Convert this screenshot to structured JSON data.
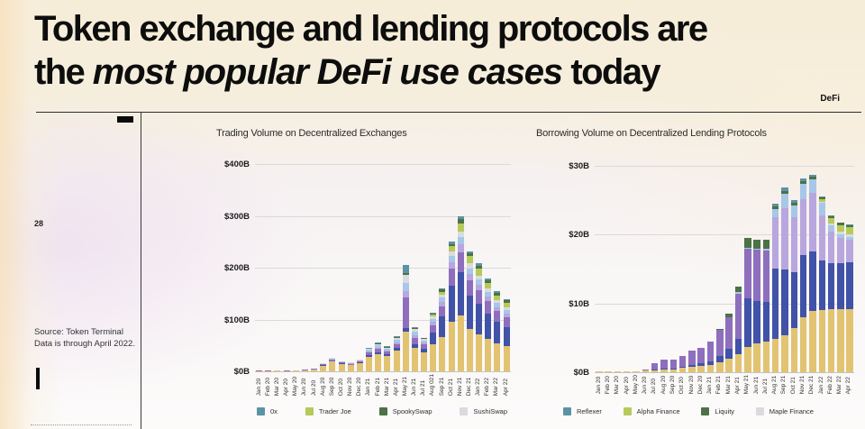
{
  "page": {
    "title_line1": "Token exchange and lending protocols are",
    "title_line2_prefix": "the ",
    "title_line2_italic": "most popular DeFi use cases",
    "title_line2_suffix": " today",
    "corner_label": "DeFi",
    "page_number": "28",
    "source_line1": "Source: Token Terminal",
    "source_line2": "Data is through April 2022."
  },
  "colors": {
    "accent_black": "#0d0d0d",
    "gridline": "#dadada",
    "series_gold": "#E2C371",
    "series_indigo": "#4053A8",
    "series_purple": "#8E6FBE",
    "series_lavender": "#B7A7DE",
    "series_sky": "#A7C7E8",
    "series_gray": "#D9DBDE",
    "series_yellowgreen": "#B5CA5B",
    "series_darkgreen": "#4C7245",
    "series_teal": "#5C93A4"
  },
  "chart_data": [
    {
      "type": "bar",
      "stacked": true,
      "title": "Trading Volume on Decentralized Exchanges",
      "ylim": [
        0,
        400
      ],
      "ylabel_ticks": [
        "$400B",
        "$300B",
        "$200B",
        "$100B",
        "$0B"
      ],
      "grid": true,
      "legend_position": "bottom",
      "categories": [
        "Jan 20",
        "Feb 20",
        "Mar 20",
        "Apr 20",
        "May 20",
        "Jun 20",
        "Jul 20",
        "Aug 20",
        "Sep 20",
        "Oct 20",
        "Nov 20",
        "Dec 20",
        "Jan 21",
        "Feb 21",
        "Mar 21",
        "Apr 21",
        "May 21",
        "Jun 21",
        "Jul 21",
        "Aug 021",
        "Sep 21",
        "Oct 21",
        "Nov 21",
        "Dec 21",
        "Jan 22",
        "Feb 22",
        "Mar 22",
        "Apr 22"
      ],
      "series": [
        {
          "name": "unlabeled-gold",
          "color": "#E2C371",
          "values": [
            0.7,
            0.8,
            1.0,
            0.8,
            1.2,
            2.0,
            3.5,
            11,
            19,
            14,
            12,
            16,
            28,
            33,
            29,
            40,
            76,
            45,
            36,
            52,
            66,
            96,
            108,
            82,
            72,
            62,
            54,
            48
          ]
        },
        {
          "name": "unlabeled-indigo",
          "color": "#4053A8",
          "values": [
            0,
            0,
            0,
            0,
            0,
            0,
            0.2,
            0.5,
            1,
            0.8,
            0.6,
            1,
            3,
            4,
            3.5,
            5,
            8,
            8,
            7,
            22,
            40,
            70,
            84,
            64,
            58,
            50,
            42,
            38
          ]
        },
        {
          "name": "unlabeled-purple",
          "color": "#8E6FBE",
          "values": [
            0.1,
            0.2,
            0.2,
            0.2,
            0.3,
            0.5,
            0.6,
            1.5,
            2.5,
            2,
            1.6,
            2.4,
            5,
            6,
            5.5,
            8,
            58,
            12,
            9,
            15,
            20,
            32,
            38,
            30,
            26,
            23,
            20,
            18
          ]
        },
        {
          "name": "unlabeled-lavender",
          "color": "#B7A7DE",
          "values": [
            0,
            0,
            0,
            0,
            0,
            0,
            0,
            0,
            0.5,
            0.4,
            0.3,
            0.5,
            2,
            3,
            2.5,
            3.5,
            12,
            5,
            3.5,
            6,
            8,
            12,
            15,
            12,
            11,
            9,
            8,
            7
          ]
        },
        {
          "name": "unlabeled-sky",
          "color": "#A7C7E8",
          "values": [
            0,
            0,
            0,
            0,
            0,
            0,
            0,
            0.5,
            1,
            0.8,
            0.7,
            1,
            3,
            4,
            3.5,
            5,
            17,
            6,
            4,
            6,
            8,
            12,
            14,
            11,
            10,
            9,
            8,
            7
          ]
        },
        {
          "name": "SushiSwap",
          "color": "#D9DBDE",
          "values": [
            0,
            0,
            0,
            0,
            0,
            0,
            0.2,
            1.5,
            2,
            1,
            0.8,
            1.1,
            2,
            2.5,
            2,
            3,
            15,
            5,
            3,
            5,
            6,
            9,
            11,
            9,
            8,
            7,
            6,
            5
          ]
        },
        {
          "name": "Trader Joe",
          "color": "#B5CA5B",
          "values": [
            0,
            0,
            0,
            0,
            0,
            0,
            0,
            0,
            0,
            0,
            0,
            0,
            0,
            0,
            0,
            0,
            0,
            0,
            0,
            3,
            6,
            10,
            16,
            14,
            13,
            11,
            9,
            9
          ]
        },
        {
          "name": "SpookySwap",
          "color": "#4C7245",
          "values": [
            0,
            0,
            0,
            0,
            0,
            0,
            0,
            0,
            0,
            0,
            0,
            0,
            1,
            1.2,
            1,
            1.5,
            4,
            2,
            1.5,
            3,
            4,
            5,
            8,
            6,
            6,
            5,
            4,
            5
          ]
        },
        {
          "name": "0x",
          "color": "#5C93A4",
          "values": [
            0,
            0,
            0,
            0,
            0,
            0,
            0,
            0,
            0,
            0,
            0,
            0,
            1,
            1.3,
            1,
            2,
            15,
            3,
            1,
            2,
            2,
            4,
            6,
            4,
            4,
            4,
            4,
            3
          ]
        }
      ],
      "legend": [
        {
          "label": "0x",
          "color": "#5C93A4"
        },
        {
          "label": "Trader Joe",
          "color": "#B5CA5B"
        },
        {
          "label": "SpookySwap",
          "color": "#4C7245"
        },
        {
          "label": "SushiSwap",
          "color": "#D9DBDE"
        }
      ]
    },
    {
      "type": "bar",
      "stacked": true,
      "title": "Borrowing Volume on Decentralized Lending Protocols",
      "ylim": [
        0,
        30
      ],
      "ylabel_ticks": [
        "$30B",
        "$20B",
        "$10B",
        "$0B"
      ],
      "grid": true,
      "legend_position": "bottom",
      "categories": [
        "Jan 20",
        "Feb 20",
        "Mar 20",
        "Apr 20",
        "May 20",
        "Jun 20",
        "Jul 20",
        "Aug 20",
        "Sep 20",
        "Oct 20",
        "Nov 20",
        "Dec 20",
        "Jan 21",
        "Feb 21",
        "Mar 21",
        "Apr 21",
        "May 21",
        "Jun 21",
        "Jul 21",
        "Aug 21",
        "Sep 21",
        "Oct 21",
        "Nov 21",
        "Dec 21",
        "Jan 22",
        "Feb 22",
        "Mar 22",
        "Apr 22"
      ],
      "series": [
        {
          "name": "unlabeled-gold",
          "color": "#E2C371",
          "values": [
            0.1,
            0.1,
            0.1,
            0.1,
            0.1,
            0.2,
            0.3,
            0.4,
            0.4,
            0.6,
            0.8,
            0.9,
            1.1,
            1.5,
            2.0,
            2.6,
            3.7,
            4.2,
            4.4,
            4.8,
            5.4,
            6.4,
            8.0,
            8.9,
            9.0,
            9.2,
            9.2,
            9.2
          ]
        },
        {
          "name": "unlabeled-indigo",
          "color": "#4053A8",
          "values": [
            0,
            0,
            0,
            0,
            0,
            0,
            0.1,
            0.1,
            0.1,
            0.2,
            0.3,
            0.4,
            0.5,
            0.9,
            1.4,
            2.2,
            7.0,
            6.2,
            5.8,
            10.3,
            9.6,
            8.2,
            9.0,
            8.6,
            7.2,
            6.6,
            6.6,
            6.8
          ]
        },
        {
          "name": "unlabeled-purple",
          "color": "#8E6FBE",
          "values": [
            0,
            0,
            0,
            0.1,
            0.1,
            0.2,
            0.9,
            1.4,
            1.3,
            1.6,
            2.1,
            2.3,
            2.8,
            3.7,
            4.6,
            6.6,
            7.2,
            7.4,
            7.5,
            0,
            0,
            0,
            0,
            0,
            0,
            0,
            0,
            0
          ]
        },
        {
          "name": "unlabeled-lavender",
          "color": "#B7A7DE",
          "values": [
            0,
            0,
            0,
            0,
            0,
            0,
            0,
            0,
            0,
            0,
            0,
            0,
            0,
            0,
            0,
            0,
            0,
            0,
            0,
            7.4,
            8.8,
            8.0,
            8.2,
            8.6,
            6.6,
            4.6,
            3.7,
            3.3
          ]
        },
        {
          "name": "unlabeled-sky",
          "color": "#A7C7E8",
          "values": [
            0,
            0,
            0,
            0,
            0,
            0,
            0,
            0,
            0,
            0,
            0,
            0,
            0,
            0,
            0,
            0.2,
            0.2,
            0.2,
            0.2,
            1.2,
            2.2,
            1.6,
            2.2,
            2.0,
            1.8,
            1.0,
            0.6,
            0.4
          ]
        },
        {
          "name": "Maple Finance",
          "color": "#D9DBDE",
          "values": [
            0,
            0,
            0,
            0,
            0,
            0,
            0,
            0,
            0,
            0,
            0,
            0,
            0,
            0,
            0,
            0,
            0,
            0,
            0,
            0,
            0,
            0,
            0,
            0,
            0.2,
            0.2,
            0.3,
            0.3
          ]
        },
        {
          "name": "Alpha Finance",
          "color": "#B5CA5B",
          "values": [
            0,
            0,
            0,
            0,
            0,
            0,
            0,
            0,
            0,
            0,
            0,
            0,
            0,
            0,
            0,
            0,
            0,
            0,
            0,
            0,
            0,
            0,
            0,
            0,
            0.4,
            0.8,
            1.0,
            1.1
          ]
        },
        {
          "name": "Liquity",
          "color": "#4C7245",
          "values": [
            0,
            0,
            0,
            0,
            0,
            0,
            0,
            0,
            0,
            0,
            0,
            0,
            0,
            0.2,
            0.5,
            0.9,
            1.4,
            1.3,
            1.3,
            0.4,
            0.4,
            0.4,
            0.4,
            0.3,
            0.2,
            0.3,
            0.3,
            0.3
          ]
        },
        {
          "name": "Reflexer",
          "color": "#5C93A4",
          "values": [
            0,
            0,
            0,
            0,
            0,
            0,
            0,
            0,
            0,
            0,
            0,
            0,
            0,
            0,
            0,
            0,
            0,
            0,
            0,
            0.4,
            0.4,
            0.4,
            0.4,
            0.3,
            0.2,
            0.1,
            0.1,
            0.1
          ]
        }
      ],
      "legend": [
        {
          "label": "Reflexer",
          "color": "#5C93A4"
        },
        {
          "label": "Alpha Finance",
          "color": "#B5CA5B"
        },
        {
          "label": "Liquity",
          "color": "#4C7245"
        },
        {
          "label": "Maple Finance",
          "color": "#D9DBDE"
        }
      ]
    }
  ]
}
